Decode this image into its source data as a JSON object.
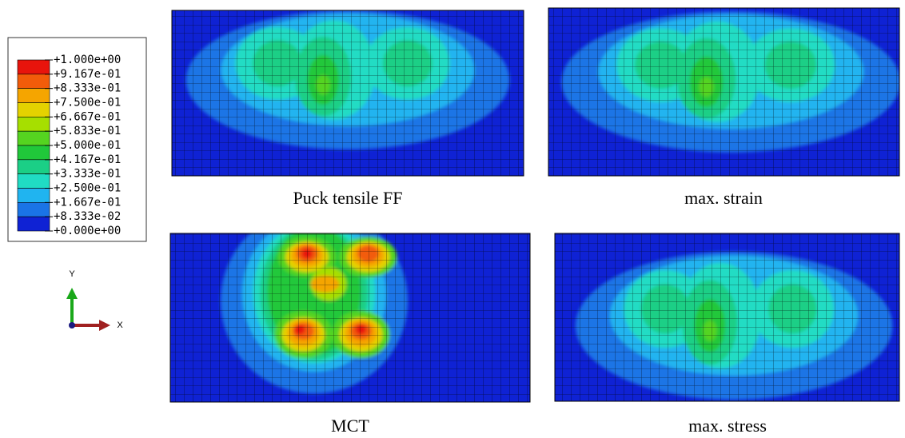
{
  "legend": {
    "labels": [
      "+1.000e+00",
      "+9.167e-01",
      "+8.333e-01",
      "+7.500e-01",
      "+6.667e-01",
      "+5.833e-01",
      "+5.000e-01",
      "+4.167e-01",
      "+3.333e-01",
      "+2.500e-01",
      "+1.667e-01",
      "+8.333e-02",
      "+0.000e+00"
    ],
    "colors": [
      "#e8140c",
      "#f25c0a",
      "#f5a500",
      "#e4d200",
      "#a6df00",
      "#55d420",
      "#20c83a",
      "#1bcf86",
      "#20dcc4",
      "#20b4f0",
      "#1a74e6",
      "#0f22d4"
    ]
  },
  "axes": {
    "y": "Y",
    "x": "X"
  },
  "panels": [
    {
      "caption": "Puck tensile FF"
    },
    {
      "caption": "max. strain"
    },
    {
      "caption": "MCT"
    },
    {
      "caption": "max. stress"
    }
  ]
}
